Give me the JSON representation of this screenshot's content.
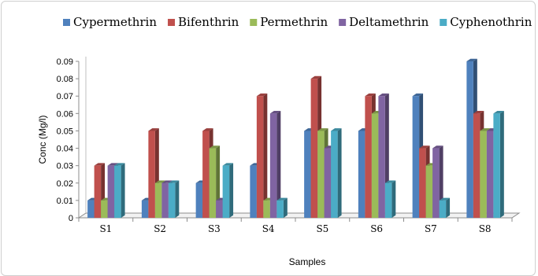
{
  "chart_data": {
    "type": "bar",
    "title": "",
    "xlabel": "Samples",
    "ylabel": "Conc (Mg/l)",
    "categories": [
      "S1",
      "S2",
      "S3",
      "S4",
      "S5",
      "S6",
      "S7",
      "S8"
    ],
    "ylim": [
      0,
      0.09
    ],
    "yticks": [
      "0",
      "0.01",
      "0.02",
      "0.03",
      "0.04",
      "0.05",
      "0.06",
      "0.07",
      "0.08",
      "0.09"
    ],
    "grid": false,
    "legend_position": "top",
    "series": [
      {
        "name": "Cypermethrin",
        "color": "#4F81BD",
        "values": [
          0.01,
          0.01,
          0.02,
          0.03,
          0.05,
          0.05,
          0.07,
          0.09
        ]
      },
      {
        "name": "Bifenthrin",
        "color": "#C0504D",
        "values": [
          0.03,
          0.05,
          0.05,
          0.07,
          0.08,
          0.07,
          0.04,
          0.06
        ]
      },
      {
        "name": "Permethrin",
        "color": "#9BBB59",
        "values": [
          0.01,
          0.02,
          0.04,
          0.01,
          0.05,
          0.06,
          0.03,
          0.05
        ]
      },
      {
        "name": "Deltamethrin",
        "color": "#8064A2",
        "values": [
          0.03,
          0.02,
          0.01,
          0.06,
          0.04,
          0.07,
          0.04,
          0.05
        ]
      },
      {
        "name": "Cyphenothrin",
        "color": "#4BACC6",
        "values": [
          0.03,
          0.02,
          0.03,
          0.01,
          0.05,
          0.02,
          0.01,
          0.06
        ]
      }
    ]
  }
}
